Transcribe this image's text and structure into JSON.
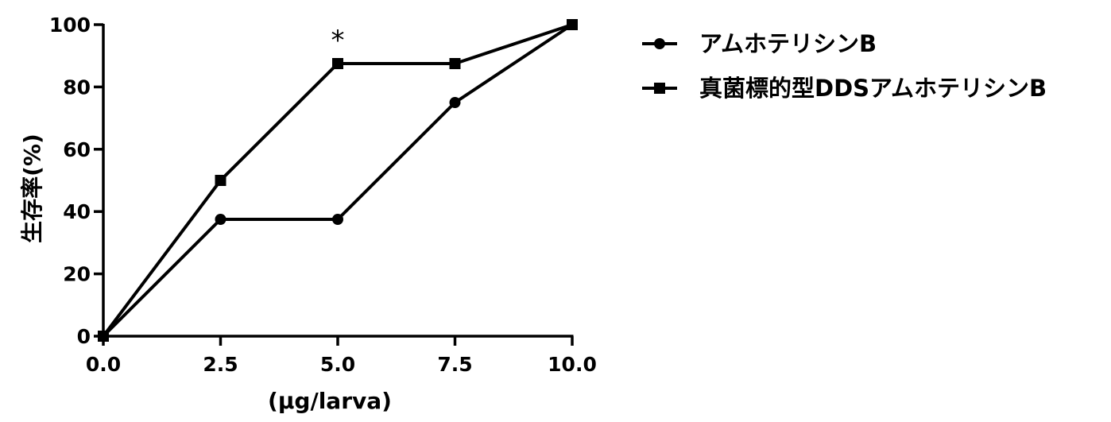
{
  "chart_data": {
    "type": "line",
    "title": "",
    "xlabel": "(μg/larva)",
    "ylabel": "生存率(%)",
    "x": [
      0,
      2.5,
      5,
      7.5,
      10
    ],
    "x_tick_labels": [
      "0.0",
      "2.5",
      "5.0",
      "7.5",
      "10.0"
    ],
    "y_ticks": [
      0,
      20,
      40,
      60,
      80,
      100
    ],
    "y_tick_labels": [
      "0",
      "20",
      "40",
      "60",
      "80",
      "100"
    ],
    "xlim": [
      0,
      10
    ],
    "ylim": [
      0,
      100
    ],
    "grid": false,
    "legend_position": "top-right, outside plot area",
    "series": [
      {
        "name": "アムホテリシンB",
        "marker": "circle",
        "color": "#000000",
        "values": [
          0,
          37.5,
          37.5,
          75,
          100
        ]
      },
      {
        "name": "真菌標的型DDSアムホテリシンB",
        "marker": "square",
        "color": "#000000",
        "values": [
          0,
          50,
          87.5,
          87.5,
          100
        ]
      }
    ],
    "annotations": [
      {
        "text": "*",
        "x": 5,
        "y": 87.5,
        "series": "真菌標的型DDSアムホテリシンB"
      }
    ]
  }
}
